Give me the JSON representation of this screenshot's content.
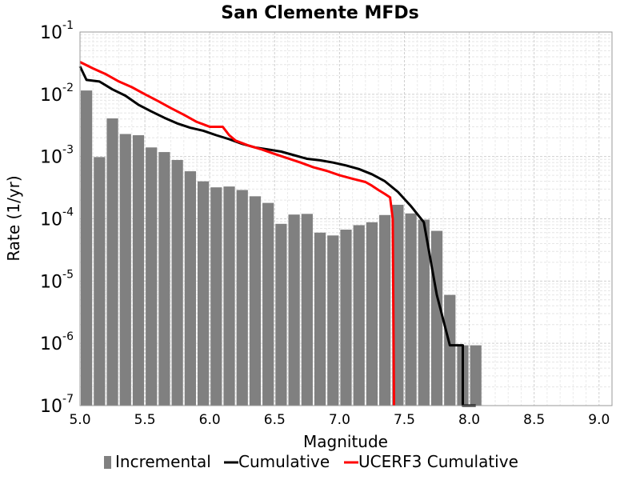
{
  "chart_data": {
    "type": "bar",
    "title": "San Clemente MFDs",
    "xlabel": "Magnitude",
    "ylabel": "Rate (1/yr)",
    "xlim": [
      5.0,
      9.1
    ],
    "ylim": [
      1e-07,
      0.1
    ],
    "y_scale": "log",
    "grid": true,
    "legend_position": "bottom",
    "x_ticks": [
      5.0,
      5.5,
      6.0,
      6.5,
      7.0,
      7.5,
      8.0,
      8.5,
      9.0
    ],
    "x_tick_labels": [
      "5.0",
      "5.5",
      "6.0",
      "6.5",
      "7.0",
      "7.5",
      "8.0",
      "8.5",
      "9.0"
    ],
    "y_ticks": [
      {
        "base": "10",
        "exp": "-1",
        "value": 0.1
      },
      {
        "base": "10",
        "exp": "-2",
        "value": 0.01
      },
      {
        "base": "10",
        "exp": "-3",
        "value": 0.001
      },
      {
        "base": "10",
        "exp": "-4",
        "value": 0.0001
      },
      {
        "base": "10",
        "exp": "-5",
        "value": 1e-05
      },
      {
        "base": "10",
        "exp": "-6",
        "value": 1e-06
      },
      {
        "base": "10",
        "exp": "-7",
        "value": 1e-07
      }
    ],
    "series": [
      {
        "name": "Incremental",
        "kind": "bar",
        "color": "#808080",
        "bin_width": 0.1,
        "x": [
          5.0,
          5.1,
          5.2,
          5.3,
          5.4,
          5.5,
          5.6,
          5.7,
          5.8,
          5.9,
          6.0,
          6.1,
          6.2,
          6.3,
          6.4,
          6.5,
          6.6,
          6.7,
          6.8,
          6.9,
          7.0,
          7.1,
          7.2,
          7.3,
          7.4,
          7.5,
          7.6,
          7.7,
          7.8,
          7.9,
          8.0
        ],
        "values": [
          0.0115,
          0.00098,
          0.0041,
          0.0023,
          0.0022,
          0.0014,
          0.00118,
          0.00088,
          0.00058,
          0.0004,
          0.00032,
          0.00033,
          0.00029,
          0.00023,
          0.00018,
          8.3e-05,
          0.000117,
          0.00012,
          6e-05,
          5.4e-05,
          6.7e-05,
          7.9e-05,
          8.8e-05,
          0.000115,
          0.000168,
          0.000122,
          9.7e-05,
          6.4e-05,
          6e-06,
          9.3e-07,
          9.3e-07
        ]
      },
      {
        "name": "Cumulative",
        "kind": "line",
        "color": "#000000",
        "x": [
          5.0,
          5.05,
          5.15,
          5.25,
          5.35,
          5.45,
          5.55,
          5.65,
          5.75,
          5.85,
          5.95,
          6.05,
          6.15,
          6.25,
          6.35,
          6.45,
          6.55,
          6.65,
          6.75,
          6.85,
          6.95,
          7.05,
          7.15,
          7.25,
          7.35,
          7.45,
          7.55,
          7.65,
          7.75,
          7.85,
          7.95,
          7.95,
          8.05,
          8.05
        ],
        "values": [
          0.028,
          0.017,
          0.016,
          0.012,
          0.0095,
          0.0068,
          0.0053,
          0.0042,
          0.0034,
          0.0029,
          0.0026,
          0.0022,
          0.0019,
          0.0016,
          0.0014,
          0.0013,
          0.0012,
          0.00105,
          0.00092,
          0.00087,
          0.0008,
          0.00072,
          0.00063,
          0.00052,
          0.0004,
          0.00027,
          0.00016,
          8.8e-05,
          6e-06,
          9.3e-07,
          9.3e-07,
          1e-07,
          1e-07,
          1e-07
        ]
      },
      {
        "name": "UCERF3 Cumulative",
        "kind": "line",
        "color": "#ff0000",
        "x": [
          5.0,
          5.1,
          5.2,
          5.3,
          5.4,
          5.5,
          5.6,
          5.7,
          5.8,
          5.9,
          6.0,
          6.05,
          6.1,
          6.15,
          6.2,
          6.3,
          6.4,
          6.5,
          6.6,
          6.7,
          6.8,
          6.9,
          7.0,
          7.1,
          7.2,
          7.25,
          7.3,
          7.35,
          7.39,
          7.41,
          7.42
        ],
        "values": [
          0.033,
          0.026,
          0.021,
          0.016,
          0.013,
          0.01,
          0.0078,
          0.006,
          0.0047,
          0.0036,
          0.003,
          0.003,
          0.003,
          0.0022,
          0.0018,
          0.0015,
          0.0013,
          0.0011,
          0.00094,
          0.0008,
          0.00067,
          0.00059,
          0.0005,
          0.00044,
          0.00039,
          0.00034,
          0.00029,
          0.00025,
          0.00022,
          0.0001,
          1e-07
        ]
      }
    ]
  }
}
